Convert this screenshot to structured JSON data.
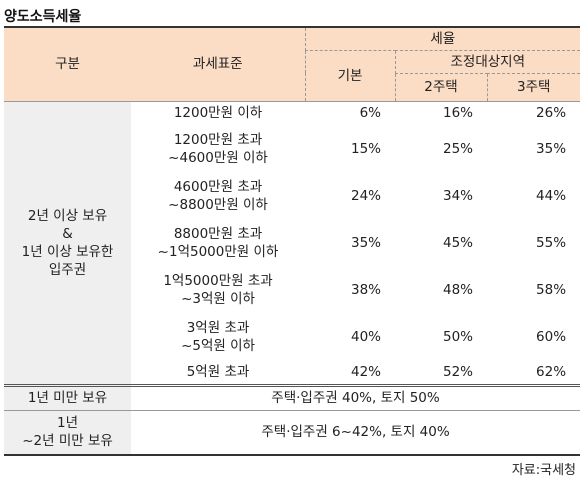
{
  "title": "양도소득세율",
  "header": {
    "gubun": "구분",
    "base": "과세표준",
    "rate": "세율",
    "basic": "기본",
    "adjusted_area": "조정대상지역",
    "two_house": "2주택",
    "three_house": "3주택"
  },
  "group1_label": [
    "2년 이상 보유",
    "&",
    "1년 이상 보유한",
    "입주권"
  ],
  "rows": [
    {
      "base": [
        "1200만원 이하"
      ],
      "basic": "6%",
      "two": "16%",
      "three": "26%"
    },
    {
      "base": [
        "1200만원 초과",
        "~4600만원 이하"
      ],
      "basic": "15%",
      "two": "25%",
      "three": "35%"
    },
    {
      "base": [
        "4600만원 초과",
        "~8800만원 이하"
      ],
      "basic": "24%",
      "two": "34%",
      "three": "44%"
    },
    {
      "base": [
        "8800만원 초과",
        "~1억5000만원 이하"
      ],
      "basic": "35%",
      "two": "45%",
      "three": "55%"
    },
    {
      "base": [
        "1억5000만원 초과",
        "~3억원 이하"
      ],
      "basic": "38%",
      "two": "48%",
      "three": "58%"
    },
    {
      "base": [
        "3억원 초과",
        "~5억원 이하"
      ],
      "basic": "40%",
      "two": "50%",
      "three": "60%"
    },
    {
      "base": [
        "5억원 초과"
      ],
      "basic": "42%",
      "two": "52%",
      "three": "62%"
    }
  ],
  "under1": {
    "label": "1년 미만 보유",
    "text": "주택·입주권 40%, 토지 50%"
  },
  "under2": {
    "label": [
      "1년",
      "~2년 미만 보유"
    ],
    "text": "주택·입주권 6~42%, 토지 40%"
  },
  "source": "자료:국세청"
}
